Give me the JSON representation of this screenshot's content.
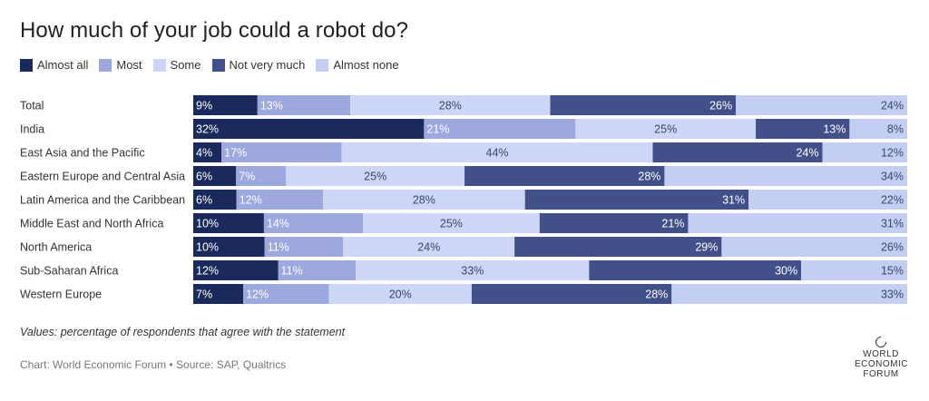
{
  "title": "How much of your job could a robot do?",
  "note": "Values: percentage of respondents that agree with the statement",
  "credit": "Chart: World Economic Forum • Source: SAP, Qualtrics",
  "logo": {
    "line1": "WORLD",
    "line2": "ECONOMIC",
    "line3": "FORUM",
    "icon": "wef-logo-icon"
  },
  "colors": {
    "almost_all": "#1b2a5c",
    "most": "#9da8de",
    "some": "#cdd6f6",
    "not_very_much": "#42508a",
    "almost_none": "#c4cef3"
  },
  "chart_data": {
    "type": "bar",
    "orientation": "horizontal",
    "stacked": true,
    "title": "How much of your job could a robot do?",
    "categories": [
      "Total",
      "India",
      "East Asia and the Pacific",
      "Eastern Europe and Central Asia",
      "Latin America and the Caribbean",
      "Middle East and North Africa",
      "North America",
      "Sub-Saharan Africa",
      "Western Europe"
    ],
    "series": [
      {
        "name": "Almost all",
        "color": "#1b2a5c",
        "values": [
          9,
          32,
          4,
          6,
          6,
          10,
          10,
          12,
          7
        ]
      },
      {
        "name": "Most",
        "color": "#9da8de",
        "values": [
          13,
          21,
          17,
          7,
          12,
          14,
          11,
          11,
          12
        ]
      },
      {
        "name": "Some",
        "color": "#cdd6f6",
        "values": [
          28,
          25,
          44,
          25,
          28,
          25,
          24,
          33,
          20
        ]
      },
      {
        "name": "Not very much",
        "color": "#42508a",
        "values": [
          26,
          13,
          24,
          28,
          31,
          21,
          29,
          30,
          28
        ]
      },
      {
        "name": "Almost none",
        "color": "#c4cef3",
        "values": [
          24,
          8,
          12,
          34,
          22,
          31,
          26,
          15,
          33
        ]
      }
    ],
    "value_suffix": "%",
    "legend": "top-left"
  }
}
